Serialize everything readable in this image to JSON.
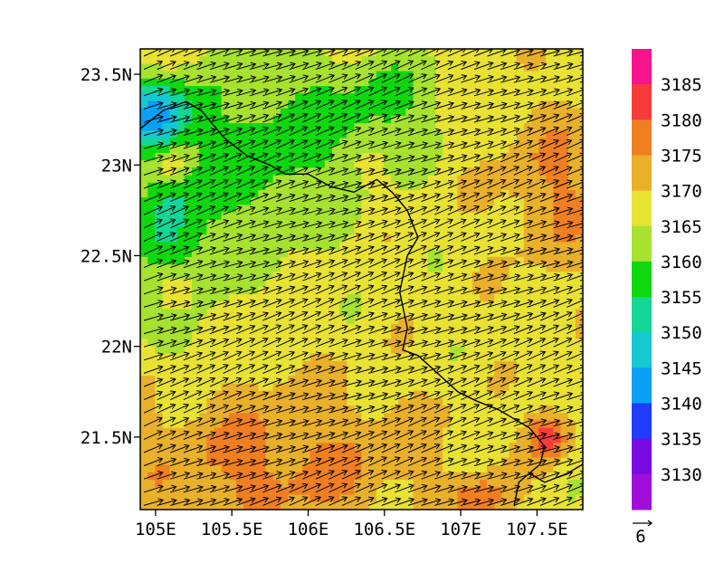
{
  "chart_data": {
    "type": "heatmap",
    "title": "",
    "xlabel": "",
    "ylabel": "",
    "x_ticks": [
      {
        "value": 105.0,
        "label": "105E"
      },
      {
        "value": 105.5,
        "label": "105.5E"
      },
      {
        "value": 106.0,
        "label": "106E"
      },
      {
        "value": 106.5,
        "label": "106.5E"
      },
      {
        "value": 107.0,
        "label": "107E"
      },
      {
        "value": 107.5,
        "label": "107.5E"
      }
    ],
    "y_ticks": [
      {
        "value": 21.5,
        "label": "21.5N"
      },
      {
        "value": 22.0,
        "label": "22N"
      },
      {
        "value": 22.5,
        "label": "22.5N"
      },
      {
        "value": 23.0,
        "label": "23N"
      },
      {
        "value": 23.5,
        "label": "23.5N"
      }
    ],
    "xlim": [
      104.9,
      107.8
    ],
    "ylim": [
      21.1,
      23.64
    ],
    "colorbar": {
      "labels": [
        "3130",
        "3135",
        "3140",
        "3145",
        "3150",
        "3155",
        "3160",
        "3165",
        "3170",
        "3175",
        "3180",
        "3185"
      ],
      "colors": [
        "#a10ed9",
        "#7a0be0",
        "#1f3dfa",
        "#0aa0f5",
        "#14c9d2",
        "#13d697",
        "#0fd80f",
        "#a6e22f",
        "#e8e233",
        "#e9b02a",
        "#f07f22",
        "#f73b3b",
        "#f5148b"
      ]
    },
    "vector_reference": {
      "label": "6"
    },
    "field": {
      "description_levels": "filled contour of geopotential height with wind vectors",
      "min": 3130,
      "max": 3187
    }
  }
}
